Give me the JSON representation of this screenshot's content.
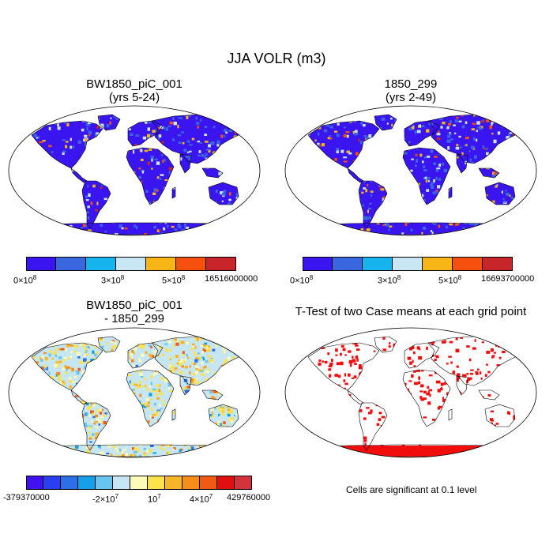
{
  "title": "JJA VOLR (m3)",
  "panels": [
    {
      "id": "p1",
      "title_line1": "BW1850_piC_001",
      "title_line2": "(yrs 5-24)",
      "field": "mean"
    },
    {
      "id": "p2",
      "title_line1": "1850_299",
      "title_line2": "(yrs 2-49)",
      "field": "mean"
    },
    {
      "id": "p3",
      "title_line1": "BW1850_piC_001",
      "title_line2": "- 1850_299",
      "field": "diff"
    },
    {
      "id": "p4",
      "title_line1": "T-Test of two Case means at each grid point",
      "title_line2": "",
      "field": "ttest"
    }
  ],
  "colorbars": {
    "mean": {
      "colors": [
        "#3b15f0",
        "#3a66e0",
        "#16b4ee",
        "#c9e6f5",
        "#f7b616",
        "#f6500f",
        "#c8252a"
      ],
      "labels_p1": [
        {
          "base": "0×10",
          "exp": "8"
        },
        {
          "base": "3×10",
          "exp": "8"
        },
        {
          "base": "5×10",
          "exp": "8"
        },
        {
          "base": "16516000000",
          "exp": ""
        }
      ],
      "labels_p2": [
        {
          "base": "0×10",
          "exp": "8"
        },
        {
          "base": "3×10",
          "exp": "8"
        },
        {
          "base": "5×10",
          "exp": "8"
        },
        {
          "base": "16693700000",
          "exp": ""
        }
      ]
    },
    "diff": {
      "colors": [
        "#3f12ef",
        "#2a3ff0",
        "#2d6fe6",
        "#16a0ea",
        "#69c5f0",
        "#c7e6f4",
        "#fefab8",
        "#fde34b",
        "#f8b52a",
        "#f58d1b",
        "#f15a14",
        "#e0100f",
        "#d3333b"
      ],
      "labels": [
        {
          "base": "-379370000",
          "exp": ""
        },
        {
          "base": "-2×10",
          "exp": "7"
        },
        {
          "base": "10",
          "exp": "7"
        },
        {
          "base": "4×10",
          "exp": "7"
        },
        {
          "base": "429760000",
          "exp": ""
        }
      ]
    }
  },
  "ttest_note": "Cells are significant at 0.1 level",
  "colors": {
    "ocean": "#ffffff",
    "mean_land": "#3b15f0",
    "diff_land": "#c7e6f4",
    "ttest_sig": "#f20d0d",
    "coast": "#000000"
  }
}
